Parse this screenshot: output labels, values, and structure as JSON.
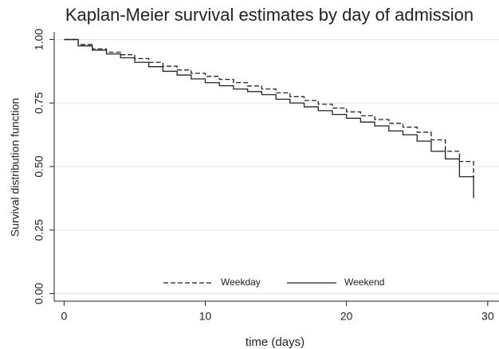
{
  "chart_data": {
    "type": "step",
    "title": "Kaplan-Meier survival estimates by day of admission",
    "x_label": "time (days)",
    "y_label": "Survival distribution function",
    "x": [
      0,
      1,
      2,
      3,
      4,
      5,
      6,
      7,
      8,
      9,
      10,
      11,
      12,
      13,
      14,
      15,
      16,
      17,
      18,
      19,
      20,
      21,
      22,
      23,
      24,
      25,
      26,
      27,
      28,
      29
    ],
    "series": [
      {
        "name": "Weekday",
        "color": "#222222",
        "line_style": "dashed",
        "values": [
          1.0,
          0.98,
          0.963,
          0.95,
          0.94,
          0.925,
          0.91,
          0.895,
          0.88,
          0.867,
          0.855,
          0.843,
          0.83,
          0.817,
          0.805,
          0.79,
          0.775,
          0.76,
          0.745,
          0.73,
          0.715,
          0.7,
          0.685,
          0.67,
          0.655,
          0.635,
          0.605,
          0.56,
          0.52,
          0.45
        ]
      },
      {
        "name": "Weekend",
        "color": "#222222",
        "line_style": "solid",
        "values": [
          1.0,
          0.975,
          0.958,
          0.943,
          0.928,
          0.91,
          0.893,
          0.875,
          0.86,
          0.845,
          0.83,
          0.818,
          0.805,
          0.795,
          0.783,
          0.765,
          0.75,
          0.735,
          0.72,
          0.705,
          0.69,
          0.675,
          0.66,
          0.64,
          0.625,
          0.6,
          0.56,
          0.53,
          0.46,
          0.376
        ]
      }
    ],
    "xlim": [
      -0.7,
      30.8
    ],
    "ylim": [
      -0.03,
      1.03
    ],
    "xticks": [
      0,
      10,
      20,
      30
    ],
    "yticks": [
      {
        "value": 0,
        "label": "0.00"
      },
      {
        "value": 0.25,
        "label": "0.25"
      },
      {
        "value": 0.5,
        "label": "0.50"
      },
      {
        "value": 0.75,
        "label": "0.75"
      },
      {
        "value": 1,
        "label": "1.00"
      }
    ],
    "grid": true,
    "legend": "bottom"
  }
}
